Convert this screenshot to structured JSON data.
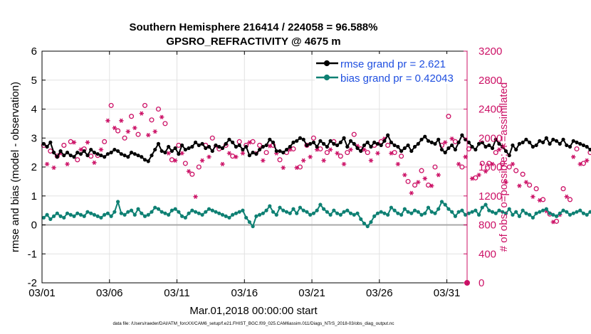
{
  "chart_data": {
    "type": "line",
    "title_line1": "Southern Hemisphere 216414 / 224058 = 96.588%",
    "title_line2": "GPSRO_REFRACTIVITY @ 4675 m",
    "xlabel": "Mar.01,2018 00:00:00 start",
    "ylabel_left": "rmse and bias (model - observation)",
    "ylabel_right": "# of obs: o=possible; ∗=assimilated",
    "footnote": "data file: /Users/raeder/DAI/ATM_forcXX/CAM6_setup/f.e21.FHIST_BGC.f09_025.CAM6assim.011/Diags_NTrS_2018-03/obs_diag_output.nc",
    "xlim": [
      0,
      31.5
    ],
    "ylim_left": [
      -2,
      6
    ],
    "ylim_right": [
      0,
      3200
    ],
    "x_tick_values": [
      0,
      5,
      10,
      15,
      20,
      25,
      30
    ],
    "x_tick_labels": [
      "03/01",
      "03/06",
      "03/11",
      "03/16",
      "03/21",
      "03/26",
      "03/31"
    ],
    "y_left_ticks": [
      "-2",
      "-1",
      "0",
      "1",
      "2",
      "3",
      "4",
      "5",
      "6"
    ],
    "y_right_ticks": [
      "0",
      "400",
      "800",
      "1200",
      "1600",
      "2000",
      "2400",
      "2800",
      "3200"
    ],
    "colors": {
      "rmse": "#000000",
      "bias": "#0e8073",
      "obs": "#cc1166",
      "legend_text": "#1f4fe0",
      "zero_line": "#a8a8a8",
      "grid": "#e2e2e2"
    },
    "legend": [
      {
        "label": "rmse grand pr = 2.621",
        "series": "rmse"
      },
      {
        "label": "bias grand pr = 0.42043",
        "series": "bias"
      }
    ],
    "step_days": 0.25,
    "series": [
      {
        "name": "rmse",
        "axis": "left",
        "values": [
          2.8,
          2.7,
          2.85,
          2.5,
          2.35,
          2.55,
          2.4,
          2.5,
          2.4,
          2.35,
          2.5,
          2.45,
          2.55,
          2.4,
          2.6,
          2.5,
          2.45,
          2.4,
          2.35,
          2.45,
          2.5,
          2.6,
          2.55,
          2.45,
          2.4,
          2.35,
          2.5,
          2.45,
          2.4,
          2.35,
          2.25,
          2.2,
          2.4,
          2.6,
          2.8,
          2.55,
          2.5,
          2.7,
          2.55,
          2.65,
          2.45,
          2.75,
          2.6,
          2.65,
          2.7,
          2.85,
          2.75,
          2.8,
          2.65,
          2.7,
          2.55,
          2.75,
          2.7,
          2.65,
          2.8,
          2.95,
          2.85,
          2.7,
          2.75,
          2.6,
          2.7,
          2.4,
          2.5,
          2.45,
          2.6,
          2.7,
          2.75,
          2.95,
          2.85,
          2.55,
          2.55,
          2.5,
          2.6,
          2.7,
          2.85,
          2.9,
          3.0,
          2.95,
          2.75,
          2.8,
          2.85,
          2.7,
          2.9,
          2.8,
          2.7,
          2.9,
          2.8,
          2.75,
          2.85,
          3.0,
          2.7,
          2.9,
          2.8,
          2.65,
          2.55,
          2.75,
          2.85,
          2.7,
          2.85,
          2.8,
          2.75,
          2.9,
          3.1,
          2.85,
          2.75,
          2.7,
          2.55,
          2.65,
          2.75,
          2.55,
          2.7,
          2.8,
          2.95,
          3.05,
          2.9,
          2.85,
          2.8,
          2.95,
          2.6,
          2.5,
          2.65,
          2.75,
          2.6,
          2.85,
          3.1,
          2.95,
          2.85,
          2.7,
          2.6,
          2.8,
          2.85,
          2.7,
          2.75,
          2.65,
          2.95,
          2.8,
          2.7,
          2.55,
          2.4,
          2.75,
          2.6,
          2.8,
          2.85,
          2.95,
          2.85,
          2.7,
          2.75,
          2.9,
          2.85,
          3.0,
          2.8,
          2.95,
          2.9,
          2.8,
          2.95,
          2.75,
          2.7,
          2.9,
          2.85,
          2.8,
          2.75,
          2.7,
          2.6,
          2.5,
          2.4,
          2.55,
          2.65,
          2.4,
          2.6,
          2.7,
          2.9,
          3.1,
          2.75,
          2.5,
          2.45,
          2.35,
          2.25,
          2.5,
          2.4,
          2.65,
          2.35,
          2.25,
          2.4,
          2.55,
          2.2,
          2.3,
          2.45,
          2.7,
          2.35,
          2.5,
          2.6,
          2.8,
          2.55,
          2.75,
          2.5,
          2.6,
          2.75,
          2.9,
          3.4,
          2.9,
          2.7,
          2.6,
          2.4,
          2.5,
          2.35,
          2.25,
          2.3,
          2.55,
          2.4,
          2.35,
          2.3,
          2.55,
          2.45,
          2.25,
          2.35,
          2.55,
          2.6,
          2.45,
          2.3,
          2.5,
          2.4,
          2.25,
          2.2,
          2.4,
          2.55,
          2.7,
          2.5,
          2.3,
          2.25,
          2.6,
          2.8,
          2.95,
          2.55,
          2.7,
          3.15,
          2.95,
          2.55,
          2.35,
          2.3,
          2.25
        ]
      },
      {
        "name": "bias",
        "axis": "left",
        "values": [
          0.25,
          0.35,
          0.2,
          0.3,
          0.4,
          0.3,
          0.25,
          0.4,
          0.35,
          0.3,
          0.4,
          0.35,
          0.3,
          0.45,
          0.4,
          0.35,
          0.3,
          0.25,
          0.35,
          0.4,
          0.3,
          0.45,
          0.8,
          0.4,
          0.35,
          0.45,
          0.5,
          0.35,
          0.55,
          0.4,
          0.3,
          0.35,
          0.45,
          0.6,
          0.55,
          0.45,
          0.4,
          0.35,
          0.5,
          0.55,
          0.45,
          0.3,
          0.25,
          0.4,
          0.5,
          0.45,
          0.4,
          0.35,
          0.45,
          0.55,
          0.5,
          0.45,
          0.4,
          0.35,
          0.3,
          0.25,
          0.35,
          0.4,
          0.45,
          0.5,
          0.25,
          0.1,
          -0.05,
          0.3,
          0.35,
          0.4,
          0.5,
          0.65,
          0.45,
          0.35,
          0.6,
          0.5,
          0.45,
          0.4,
          0.55,
          0.4,
          0.6,
          0.5,
          0.45,
          0.35,
          0.4,
          0.5,
          0.7,
          0.55,
          0.45,
          0.35,
          0.5,
          0.4,
          0.35,
          0.45,
          0.5,
          0.4,
          0.35,
          0.4,
          0.2,
          0.05,
          -0.05,
          0.1,
          0.3,
          0.4,
          0.45,
          0.4,
          0.35,
          0.6,
          0.5,
          0.4,
          0.35,
          0.55,
          0.45,
          0.4,
          0.5,
          0.45,
          0.35,
          0.4,
          0.6,
          0.45,
          0.4,
          0.55,
          0.8,
          0.7,
          0.55,
          0.45,
          0.3,
          0.45,
          0.5,
          0.35,
          0.4,
          0.45,
          0.5,
          0.35,
          0.6,
          0.7,
          0.5,
          0.45,
          0.4,
          0.5,
          0.45,
          0.4,
          0.55,
          0.35,
          0.45,
          0.3,
          0.5,
          0.4,
          0.35,
          0.25,
          0.4,
          0.45,
          0.5,
          0.55,
          0.4,
          0.35,
          0.3,
          0.4,
          0.5,
          0.45,
          0.35,
          0.4,
          0.45,
          0.5,
          0.4,
          0.35,
          0.45,
          0.5,
          0.4,
          0.45,
          0.55,
          0.45,
          0.35,
          0.25,
          0.3,
          0.4,
          0.35,
          0.45,
          0.4,
          0.5,
          0.55,
          0.45,
          0.4,
          0.35,
          0.5,
          0.4,
          0.3,
          0.45,
          0.4,
          0.35,
          0.45,
          0.5,
          0.4,
          0.3,
          0.35,
          0.45,
          0.55,
          0.5,
          0.4,
          0.45,
          0.4,
          0.3,
          0.75,
          0.6,
          0.55,
          0.65,
          0.45,
          0.55,
          0.75,
          0.55,
          0.45,
          0.6,
          0.5,
          0.35,
          0.3,
          0.2,
          0.45,
          0.55,
          0.4,
          0.3,
          0.4,
          0.5,
          0.35,
          0.45,
          0.4,
          0.45,
          0.55,
          0.5,
          0.35,
          0.4,
          0.45,
          0.5,
          0.55,
          0.45,
          0.3,
          0.5,
          0.4,
          0.55,
          0.45,
          0.35,
          0.5,
          0.55,
          0.4,
          0.45
        ]
      },
      {
        "name": "obs_possible",
        "axis": "right",
        "values": [
          1900,
          1700,
          1820,
          1650,
          1750,
          1850,
          1900,
          1700,
          1950,
          2000,
          1700,
          1900,
          1850,
          2000,
          1750,
          1720,
          1760,
          1900,
          1950,
          2300,
          2450,
          2200,
          2100,
          2300,
          2000,
          2150,
          2300,
          2200,
          2050,
          2400,
          2450,
          2100,
          2250,
          2150,
          2400,
          2350,
          2200,
          1850,
          1700,
          1750,
          1900,
          1850,
          1650,
          1600,
          1500,
          1250,
          1600,
          1750,
          1900,
          1800,
          2000,
          1950,
          1850,
          1700,
          1900,
          1850,
          1750,
          1800,
          1950,
          1850,
          1900,
          2000,
          1950,
          1850,
          1900,
          1750,
          1800,
          1950,
          1900,
          1850,
          1700,
          1650,
          1800,
          1900,
          1850,
          1650,
          1600,
          1750,
          1900,
          1800,
          2000,
          1900,
          1850,
          1750,
          1800,
          1900,
          1950,
          1850,
          1750,
          1700,
          1800,
          1900,
          2050,
          1950,
          1850,
          1900,
          1800,
          1750,
          1900,
          1850,
          1950,
          2050,
          1900,
          1850,
          1800,
          1700,
          1750,
          1550,
          1400,
          1300,
          1350,
          1450,
          1550,
          1500,
          1350,
          1400,
          1600,
          1550,
          1900,
          2000,
          2300,
          2050,
          1950,
          1700,
          1600,
          1800,
          1850,
          1500,
          1450,
          1550,
          1650,
          1600,
          1650,
          1700,
          1800,
          1900,
          1650,
          1450,
          1600,
          1700,
          1550,
          1400,
          1500,
          1450,
          1350,
          1250,
          1300,
          1200,
          1150,
          1050,
          950,
          900,
          850,
          1000,
          1300,
          1250,
          1150,
          1800,
          1850,
          1700,
          1650,
          1750,
          1800,
          1850,
          1700,
          1650,
          1600,
          1500,
          1450,
          1400,
          1550,
          1600,
          1700,
          1850,
          2000,
          2100,
          2200,
          2050,
          1900,
          1750,
          1700,
          1600,
          1500,
          1400,
          1350,
          1250,
          1200,
          1300,
          1100,
          1000,
          950,
          850,
          800,
          900,
          1000,
          1200,
          1300,
          1250,
          1150,
          1200,
          1350,
          1500,
          1550,
          1650,
          1900,
          1950,
          2150,
          2000,
          1800,
          1700,
          1750,
          1850,
          1900,
          2000,
          1950,
          1800,
          1700,
          1750,
          1900,
          1850,
          1800,
          1700,
          1650,
          1750,
          1950,
          2100,
          2150,
          1900,
          1800,
          1850,
          1950,
          2100,
          2200,
          2300,
          2250,
          2100,
          1950,
          1850,
          1800,
          1750,
          1900,
          2000,
          2050,
          2250,
          2300
        ]
      },
      {
        "name": "obs_assimilated",
        "axis": "right",
        "values": [
          1840,
          1640,
          1760,
          1590,
          1690,
          1790,
          1840,
          1640,
          1890,
          1940,
          1640,
          1840,
          1790,
          1940,
          1690,
          1660,
          1700,
          1840,
          1890,
          2240,
          2390,
          2140,
          2040,
          2240,
          1940,
          2090,
          2240,
          2140,
          1990,
          2340,
          2390,
          2040,
          2190,
          2090,
          2340,
          2290,
          2140,
          1790,
          1640,
          1690,
          1840,
          1790,
          1590,
          1540,
          1440,
          1190,
          1540,
          1690,
          1840,
          1740,
          1940,
          1890,
          1790,
          1640,
          1840,
          1790,
          1690,
          1740,
          1890,
          1790,
          1840,
          1940,
          1890,
          1790,
          1840,
          1690,
          1740,
          1890,
          1840,
          1790,
          1640,
          1590,
          1740,
          1840,
          1790,
          1590,
          1540,
          1690,
          1840,
          1740,
          1940,
          1840,
          1790,
          1690,
          1740,
          1840,
          1890,
          1790,
          1690,
          1640,
          1740,
          1840,
          1990,
          1890,
          1790,
          1840,
          1740,
          1690,
          1840,
          1790,
          1890,
          1990,
          1840,
          1790,
          1740,
          1640,
          1690,
          1490,
          1340,
          1240,
          1290,
          1390,
          1490,
          1440,
          1290,
          1340,
          1540,
          1490,
          1840,
          1940,
          2240,
          1990,
          1890,
          1640,
          1540,
          1740,
          1790,
          1440,
          1390,
          1490,
          1590,
          1540,
          1590,
          1640,
          1740,
          1840,
          1590,
          1390,
          1540,
          1640,
          1490,
          1340,
          1440,
          1390,
          1290,
          1190,
          1240,
          1140,
          1090,
          990,
          890,
          840,
          790,
          940,
          1240,
          1190,
          1090,
          1740,
          1790,
          1640,
          1590,
          1690,
          1740,
          1790,
          1640,
          1590,
          1540,
          1440,
          1390,
          1340,
          1490,
          1540,
          1640,
          1790,
          1940,
          2040,
          2140,
          1990,
          1840,
          1690,
          1640,
          1540,
          1440,
          1340,
          1290,
          1190,
          1140,
          1240,
          1040,
          940,
          890,
          790,
          740,
          840,
          940,
          1140,
          1240,
          1190,
          1090,
          1140,
          1290,
          1440,
          1490,
          1590,
          1840,
          1890,
          2090,
          1940,
          1740,
          1640,
          1690,
          1790,
          1840,
          1940,
          1890,
          1740,
          1640,
          1690,
          1840,
          1790,
          1740,
          1640,
          1590,
          1690,
          1890,
          2040,
          2090,
          1840,
          1740,
          1790,
          1890,
          2040,
          2140,
          2240,
          2190,
          2040,
          1890,
          1790,
          1740,
          1690,
          1840,
          1940,
          1990,
          2190,
          2240
        ]
      }
    ]
  }
}
